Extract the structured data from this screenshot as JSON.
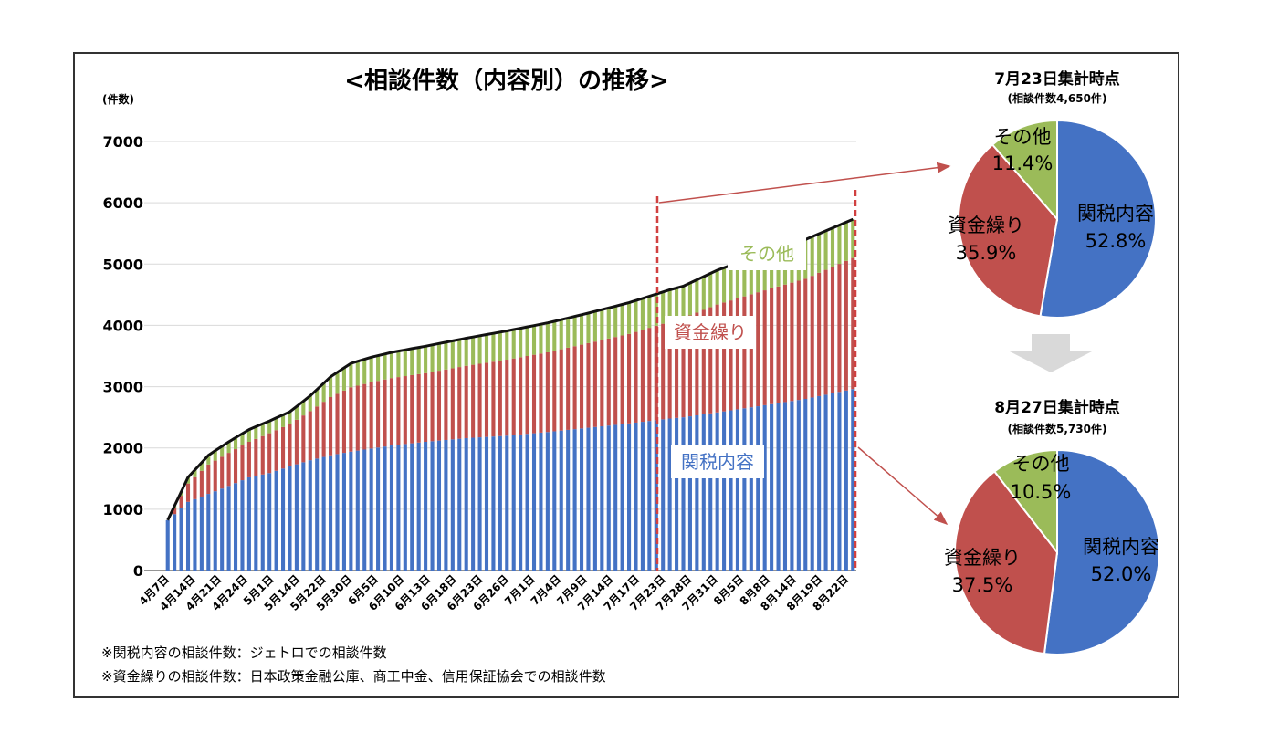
{
  "colors": {
    "blue": "#4472c4",
    "red": "#c0504d",
    "green": "#9bbb59",
    "line": "#111111",
    "dash": "#d04040",
    "label_blue": "#4472c4",
    "label_red": "#c0504d",
    "label_green": "#9bbb59"
  },
  "chart_data": [
    {
      "type": "bar",
      "stacked": true,
      "title": "<相談件数（内容別）の推移>",
      "ylabel": "(件数)",
      "ylim": [
        0,
        7000
      ],
      "yticks": [
        "0",
        "1000",
        "2000",
        "3000",
        "4000",
        "5000",
        "6000",
        "7000"
      ],
      "grid": true,
      "x_tick_labels": [
        "4月7日",
        "4月14日",
        "4月21日",
        "4月24日",
        "5月1日",
        "5月14日",
        "5月22日",
        "5月30日",
        "6月5日",
        "6月10日",
        "6月13日",
        "6月18日",
        "6月23日",
        "6月26日",
        "7月1日",
        "7月4日",
        "7月9日",
        "7月14日",
        "7月17日",
        "7月23日",
        "7月28日",
        "7月31日",
        "8月5日",
        "8月8日",
        "8月14日",
        "8月19日",
        "8月22日"
      ],
      "n_bars": 102,
      "total_line": true,
      "series": [
        {
          "name": "関税内容",
          "anchors": [
            [
              0,
              820
            ],
            [
              3,
              1120
            ],
            [
              6,
              1250
            ],
            [
              9,
              1380
            ],
            [
              12,
              1520
            ],
            [
              15,
              1590
            ],
            [
              18,
              1700
            ],
            [
              21,
              1800
            ],
            [
              24,
              1880
            ],
            [
              27,
              1940
            ],
            [
              30,
              1990
            ],
            [
              33,
              2040
            ],
            [
              38,
              2100
            ],
            [
              44,
              2160
            ],
            [
              50,
              2200
            ],
            [
              56,
              2260
            ],
            [
              62,
              2330
            ],
            [
              68,
              2400
            ],
            [
              74,
              2480
            ],
            [
              76,
              2500
            ],
            [
              81,
              2580
            ],
            [
              87,
              2680
            ],
            [
              94,
              2800
            ],
            [
              101,
              2960
            ]
          ]
        },
        {
          "name": "資金繰り",
          "anchors": [
            [
              0,
              0
            ],
            [
              3,
              300
            ],
            [
              6,
              480
            ],
            [
              9,
              540
            ],
            [
              12,
              580
            ],
            [
              15,
              650
            ],
            [
              18,
              690
            ],
            [
              21,
              800
            ],
            [
              24,
              950
            ],
            [
              27,
              1050
            ],
            [
              30,
              1080
            ],
            [
              33,
              1100
            ],
            [
              38,
              1120
            ],
            [
              44,
              1180
            ],
            [
              50,
              1240
            ],
            [
              56,
              1300
            ],
            [
              62,
              1380
            ],
            [
              68,
              1460
            ],
            [
              74,
              1580
            ],
            [
              76,
              1620
            ],
            [
              81,
              1760
            ],
            [
              87,
              1860
            ],
            [
              94,
              1960
            ],
            [
              101,
              2140
            ]
          ]
        },
        {
          "name": "その他",
          "anchors": [
            [
              0,
              0
            ],
            [
              3,
              100
            ],
            [
              6,
              150
            ],
            [
              9,
              180
            ],
            [
              12,
              200
            ],
            [
              15,
              200
            ],
            [
              18,
              200
            ],
            [
              21,
              250
            ],
            [
              24,
              330
            ],
            [
              27,
              390
            ],
            [
              30,
              410
            ],
            [
              33,
              420
            ],
            [
              38,
              440
            ],
            [
              44,
              450
            ],
            [
              50,
              470
            ],
            [
              56,
              480
            ],
            [
              62,
              490
            ],
            [
              68,
              510
            ],
            [
              74,
              520
            ],
            [
              76,
              520
            ],
            [
              81,
              560
            ],
            [
              87,
              600
            ],
            [
              94,
              640
            ],
            [
              101,
              630
            ]
          ]
        }
      ],
      "annotations": [
        "その他",
        "資金繰り",
        "関税内容"
      ],
      "highlight_range": {
        "from_label": "7月23日",
        "to_label": "8月22日"
      }
    },
    {
      "type": "pie",
      "title": "7月23日集計時点",
      "subtitle": "(相談件数4,650件)",
      "slices": [
        {
          "label": "関税内容",
          "pct": "52.8%",
          "value": 52.8
        },
        {
          "label": "資金繰り",
          "pct": "35.9%",
          "value": 35.9
        },
        {
          "label": "その他",
          "pct": "11.4%",
          "value": 11.4
        }
      ]
    },
    {
      "type": "pie",
      "title": "8月27日集計時点",
      "subtitle": "(相談件数5,730件)",
      "slices": [
        {
          "label": "関税内容",
          "pct": "52.0%",
          "value": 52.0
        },
        {
          "label": "資金繰り",
          "pct": "37.5%",
          "value": 37.5
        },
        {
          "label": "その他",
          "pct": "10.5%",
          "value": 10.5
        }
      ]
    }
  ],
  "footnotes": [
    "※関税内容の相談件数：ジェトロでの相談件数",
    "※資金繰りの相談件数：日本政策金融公庫、商工中金、信用保証協会での相談件数"
  ]
}
